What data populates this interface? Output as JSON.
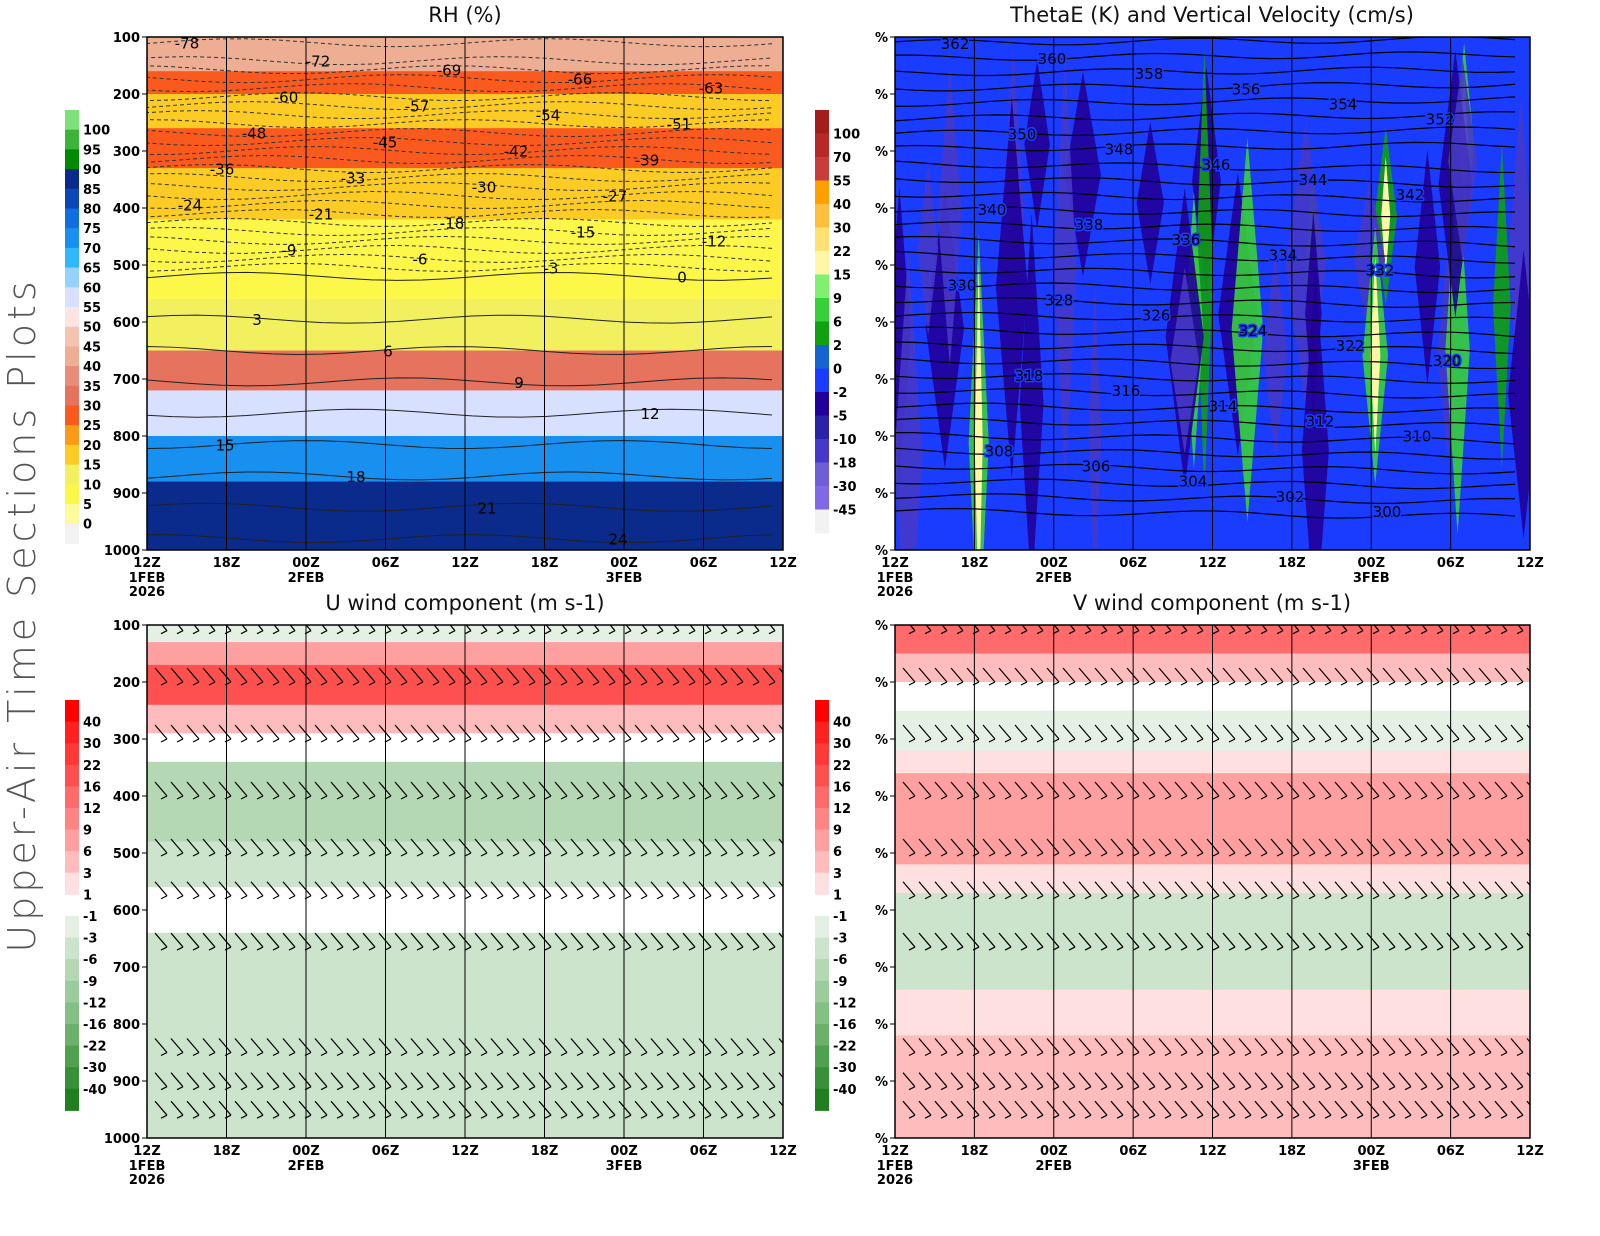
{
  "page_title": "Upper-Air Time Sections Plots",
  "chart_data": [
    {
      "id": "rh",
      "type": "heatmap",
      "title": "RH (%)",
      "xlabel": "",
      "ylabel": "",
      "x_ticks": [
        "12Z",
        "18Z",
        "00Z",
        "06Z",
        "12Z",
        "18Z",
        "00Z",
        "06Z",
        "12Z"
      ],
      "x_date_labels": [
        {
          "tick": 0,
          "lines": [
            "1FEB",
            "2026"
          ]
        },
        {
          "tick": 2,
          "lines": [
            "2FEB"
          ]
        },
        {
          "tick": 6,
          "lines": [
            "3FEB"
          ]
        }
      ],
      "y_ticks": [
        "100",
        "200",
        "300",
        "400",
        "500",
        "600",
        "700",
        "800",
        "900",
        "1000"
      ],
      "ylim": [
        100,
        1000
      ],
      "colorbar": {
        "labels": [
          "100",
          "95",
          "90",
          "85",
          "80",
          "75",
          "70",
          "65",
          "60",
          "55",
          "50",
          "45",
          "40",
          "35",
          "30",
          "25",
          "20",
          "15",
          "10",
          "5",
          "0"
        ],
        "colors": [
          "#7de07a",
          "#3cb43c",
          "#008a00",
          "#0a2a8c",
          "#0b47b8",
          "#0f6ee0",
          "#1890f0",
          "#30b8fa",
          "#98d0ff",
          "#d8e0ff",
          "#fde4e4",
          "#f5c4b0",
          "#eeae94",
          "#e98c7a",
          "#e5735e",
          "#fa5a1e",
          "#fb9a14",
          "#fdcc24",
          "#f3f060",
          "#fdf74a",
          "#fdfb9a",
          "#f2f2f2"
        ]
      },
      "contour_overlay": {
        "variable": "Temperature (C)",
        "labels": [
          "-78",
          "-72",
          "-69",
          "-66",
          "-63",
          "-60",
          "-57",
          "-54",
          "-51",
          "-48",
          "-45",
          "-42",
          "-39",
          "-36",
          "-33",
          "-30",
          "-27",
          "-24",
          "-21",
          "-18",
          "-15",
          "-12",
          "-9",
          "-6",
          "-3",
          "0",
          "3",
          "6",
          "9",
          "12",
          "15",
          "18",
          "21",
          "24"
        ]
      },
      "bands": [
        {
          "p_top": 100,
          "p_bot": 160,
          "rh": 40
        },
        {
          "p_top": 160,
          "p_bot": 200,
          "rh": 25
        },
        {
          "p_top": 200,
          "p_bot": 260,
          "rh": 15
        },
        {
          "p_top": 260,
          "p_bot": 330,
          "rh": 25
        },
        {
          "p_top": 330,
          "p_bot": 420,
          "rh": 15
        },
        {
          "p_top": 420,
          "p_bot": 560,
          "rh": 5
        },
        {
          "p_top": 560,
          "p_bot": 650,
          "rh": 10
        },
        {
          "p_top": 650,
          "p_bot": 720,
          "rh": 30
        },
        {
          "p_top": 720,
          "p_bot": 800,
          "rh": 55
        },
        {
          "p_top": 800,
          "p_bot": 880,
          "rh": 70
        },
        {
          "p_top": 880,
          "p_bot": 1000,
          "rh": 85
        }
      ]
    },
    {
      "id": "thetae",
      "type": "heatmap",
      "title": "ThetaE (K) and Vertical Velocity (cm/s)",
      "x_ticks": [
        "12Z",
        "18Z",
        "00Z",
        "06Z",
        "12Z",
        "18Z",
        "00Z",
        "06Z",
        "12Z"
      ],
      "x_date_labels": [
        {
          "tick": 0,
          "lines": [
            "1FEB",
            "2026"
          ]
        },
        {
          "tick": 2,
          "lines": [
            "2FEB"
          ]
        },
        {
          "tick": 6,
          "lines": [
            "3FEB"
          ]
        }
      ],
      "y_ticks": [
        "%",
        "%",
        "%",
        "%",
        "%",
        "%",
        "%",
        "%",
        "%",
        "%"
      ],
      "colorbar": {
        "labels": [
          "100",
          "70",
          "55",
          "40",
          "30",
          "22",
          "15",
          "9",
          "6",
          "2",
          "0",
          "-2",
          "-5",
          "-10",
          "-18",
          "-30",
          "-45"
        ],
        "colors": [
          "#a31d1d",
          "#b82828",
          "#c83c3c",
          "#ff9f00",
          "#ffbf3c",
          "#ffe072",
          "#fff6a8",
          "#80f070",
          "#38d038",
          "#10a010",
          "#1464d2",
          "#1a3cff",
          "#22009a",
          "#2a22a8",
          "#4638c8",
          "#6e5ed8",
          "#8068e8",
          "#f2f2f2"
        ]
      },
      "contour_overlay": {
        "variable": "ThetaE (K)",
        "labels": [
          "362",
          "360",
          "358",
          "356",
          "354",
          "352",
          "350",
          "348",
          "346",
          "344",
          "342",
          "340",
          "338",
          "336",
          "334",
          "332",
          "330",
          "328",
          "326",
          "324",
          "322",
          "320",
          "318",
          "316",
          "314",
          "312",
          "310",
          "308",
          "306",
          "304",
          "302",
          "300"
        ]
      }
    },
    {
      "id": "u",
      "type": "heatmap",
      "title": "U wind component (m s-1)",
      "x_ticks": [
        "12Z",
        "18Z",
        "00Z",
        "06Z",
        "12Z",
        "18Z",
        "00Z",
        "06Z",
        "12Z"
      ],
      "x_date_labels": [
        {
          "tick": 0,
          "lines": [
            "1FEB",
            "2026"
          ]
        },
        {
          "tick": 2,
          "lines": [
            "2FEB"
          ]
        },
        {
          "tick": 6,
          "lines": [
            "3FEB"
          ]
        }
      ],
      "y_ticks": [
        "100",
        "200",
        "300",
        "400",
        "500",
        "600",
        "700",
        "800",
        "900",
        "1000"
      ],
      "ylim": [
        100,
        1000
      ],
      "colorbar": {
        "labels": [
          "40",
          "30",
          "22",
          "16",
          "12",
          "9",
          "6",
          "3",
          "1",
          "-1",
          "-3",
          "-6",
          "-9",
          "-12",
          "-16",
          "-22",
          "-30",
          "-40"
        ],
        "colors": [
          "#ff0000",
          "#ff2020",
          "#ff3838",
          "#ff5050",
          "#ff6a6a",
          "#ff8484",
          "#ffa0a0",
          "#ffbcbc",
          "#ffe0e0",
          "#ffffff",
          "#e4f0e4",
          "#cce4cc",
          "#b4d8b4",
          "#9ccc9c",
          "#84bf84",
          "#6cb06c",
          "#50a050",
          "#389038",
          "#208020"
        ]
      },
      "bands": [
        {
          "p_top": 100,
          "p_bot": 130,
          "u": -3
        },
        {
          "p_top": 130,
          "p_bot": 170,
          "u": 6
        },
        {
          "p_top": 170,
          "p_bot": 240,
          "u": 16
        },
        {
          "p_top": 240,
          "p_bot": 290,
          "u": 3
        },
        {
          "p_top": 290,
          "p_bot": 340,
          "u": -1
        },
        {
          "p_top": 340,
          "p_bot": 480,
          "u": -9
        },
        {
          "p_top": 480,
          "p_bot": 560,
          "u": -6
        },
        {
          "p_top": 560,
          "p_bot": 640,
          "u": -1
        },
        {
          "p_top": 640,
          "p_bot": 1000,
          "u": -6
        }
      ],
      "barb_levels": [
        110,
        200,
        300,
        400,
        500,
        575,
        665,
        850,
        910,
        960
      ]
    },
    {
      "id": "v",
      "type": "heatmap",
      "title": "V wind component (m s-1)",
      "x_ticks": [
        "12Z",
        "18Z",
        "00Z",
        "06Z",
        "12Z",
        "18Z",
        "00Z",
        "06Z",
        "12Z"
      ],
      "x_date_labels": [
        {
          "tick": 0,
          "lines": [
            "1FEB",
            "2026"
          ]
        },
        {
          "tick": 2,
          "lines": [
            "2FEB"
          ]
        },
        {
          "tick": 6,
          "lines": [
            "3FEB"
          ]
        }
      ],
      "y_ticks": [
        "%",
        "%",
        "%",
        "%",
        "%",
        "%",
        "%",
        "%",
        "%",
        "%"
      ],
      "colorbar": {
        "labels": [
          "40",
          "30",
          "22",
          "16",
          "12",
          "9",
          "6",
          "3",
          "1",
          "-1",
          "-3",
          "-6",
          "-9",
          "-12",
          "-16",
          "-22",
          "-30",
          "-40"
        ],
        "colors": [
          "#ff0000",
          "#ff2020",
          "#ff3838",
          "#ff5050",
          "#ff6a6a",
          "#ff8484",
          "#ffa0a0",
          "#ffbcbc",
          "#ffe0e0",
          "#ffffff",
          "#e4f0e4",
          "#cce4cc",
          "#b4d8b4",
          "#9ccc9c",
          "#84bf84",
          "#6cb06c",
          "#50a050",
          "#389038",
          "#208020"
        ]
      },
      "bands": [
        {
          "p_top": 100,
          "p_bot": 150,
          "v": 12
        },
        {
          "p_top": 150,
          "p_bot": 200,
          "v": 3
        },
        {
          "p_top": 200,
          "p_bot": 250,
          "v": -1
        },
        {
          "p_top": 250,
          "p_bot": 320,
          "v": -3
        },
        {
          "p_top": 320,
          "p_bot": 360,
          "v": 1
        },
        {
          "p_top": 360,
          "p_bot": 520,
          "v": 6
        },
        {
          "p_top": 520,
          "p_bot": 570,
          "v": 1
        },
        {
          "p_top": 570,
          "p_bot": 740,
          "v": -6
        },
        {
          "p_top": 740,
          "p_bot": 820,
          "v": 1
        },
        {
          "p_top": 820,
          "p_bot": 1000,
          "v": 3
        }
      ],
      "barb_levels": [
        110,
        200,
        300,
        400,
        500,
        575,
        665,
        850,
        910,
        960
      ]
    }
  ]
}
